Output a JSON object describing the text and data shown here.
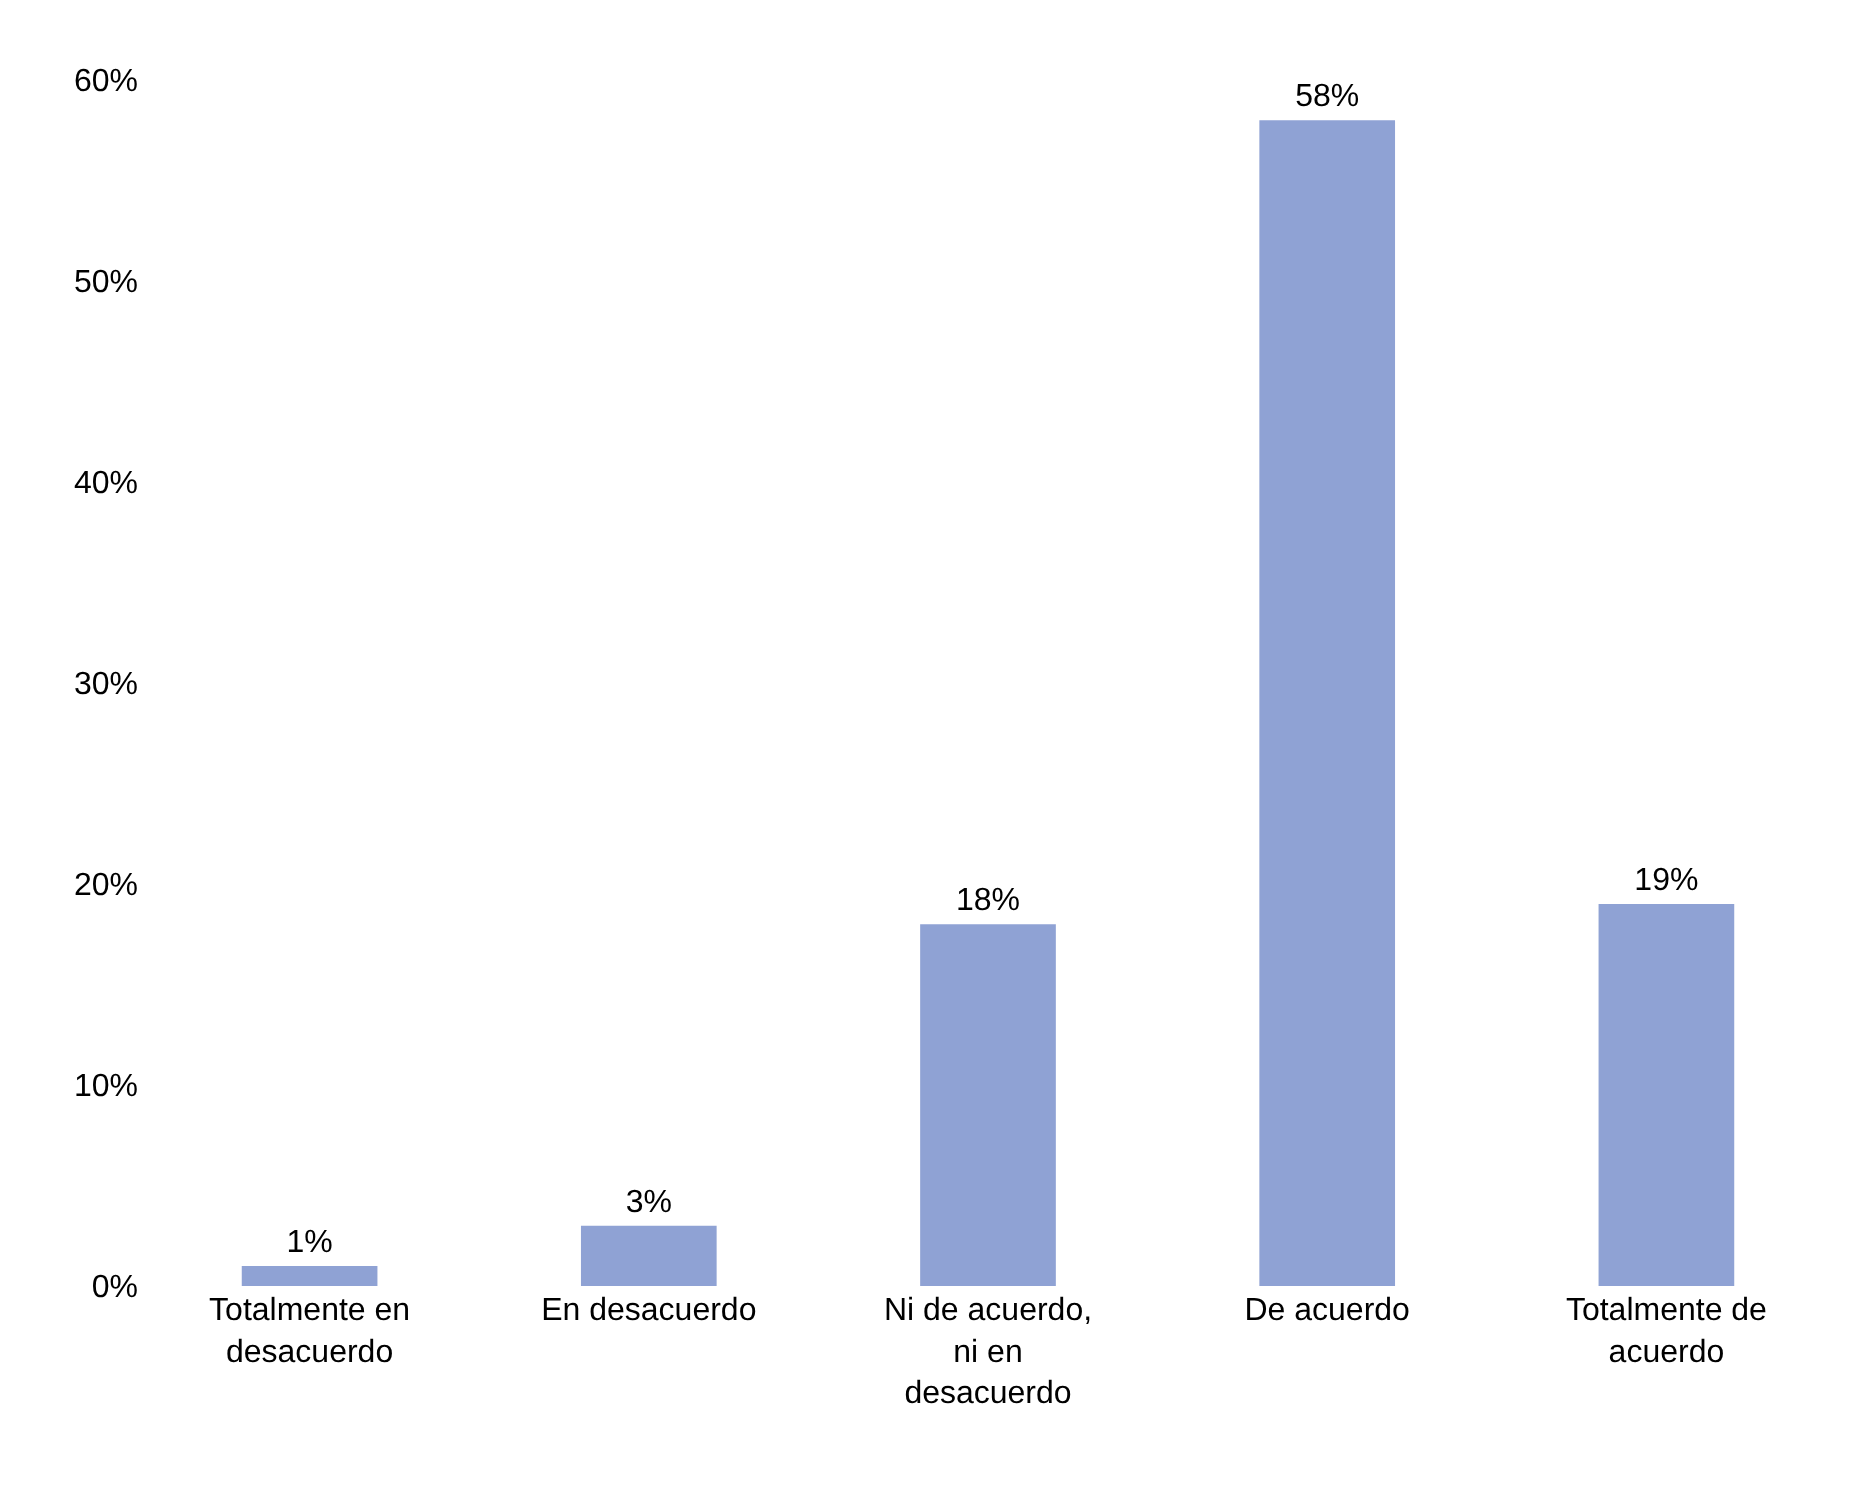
{
  "chart_data": {
    "type": "bar",
    "categories": [
      "Totalmente en desacuerdo",
      "En desacuerdo",
      "Ni de acuerdo, ni en desacuerdo",
      "De acuerdo",
      "Totalmente de acuerdo"
    ],
    "values": [
      1,
      3,
      18,
      58,
      19
    ],
    "value_labels": [
      "1%",
      "3%",
      "18%",
      "58%",
      "19%"
    ],
    "color": "#8fa2d4",
    "ylim": [
      0,
      60
    ],
    "yticks": [
      {
        "value": 0,
        "label": "0%"
      },
      {
        "value": 10,
        "label": "10%"
      },
      {
        "value": 20,
        "label": "20%"
      },
      {
        "value": 30,
        "label": "30%"
      },
      {
        "value": 40,
        "label": "40%"
      },
      {
        "value": 50,
        "label": "50%"
      },
      {
        "value": 60,
        "label": "60%"
      }
    ],
    "data_labels": false
  }
}
